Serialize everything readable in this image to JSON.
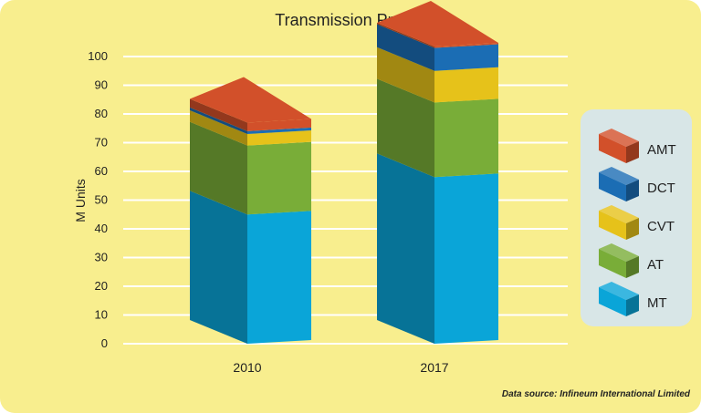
{
  "chart_data": {
    "type": "bar",
    "stacked": true,
    "style": "3d-column",
    "title": "Transmission Production",
    "xlabel": "",
    "ylabel": "M Units",
    "ylim": [
      0,
      100
    ],
    "yticks": [
      0,
      10,
      20,
      30,
      40,
      50,
      60,
      70,
      80,
      90,
      100
    ],
    "grid": true,
    "legend_position": "right",
    "categories": [
      "2010",
      "2017"
    ],
    "series": [
      {
        "name": "MT",
        "values": [
          45,
          58
        ],
        "color": "#0aa5d8"
      },
      {
        "name": "AT",
        "values": [
          24,
          26
        ],
        "color": "#79ad38"
      },
      {
        "name": "CVT",
        "values": [
          4,
          11
        ],
        "color": "#e6c21a"
      },
      {
        "name": "DCT",
        "values": [
          1,
          8
        ],
        "color": "#1b6db4"
      },
      {
        "name": "AMT",
        "values": [
          3,
          0.5
        ],
        "color": "#d2502a"
      }
    ],
    "source": "Data source: Infineum International Limited"
  }
}
